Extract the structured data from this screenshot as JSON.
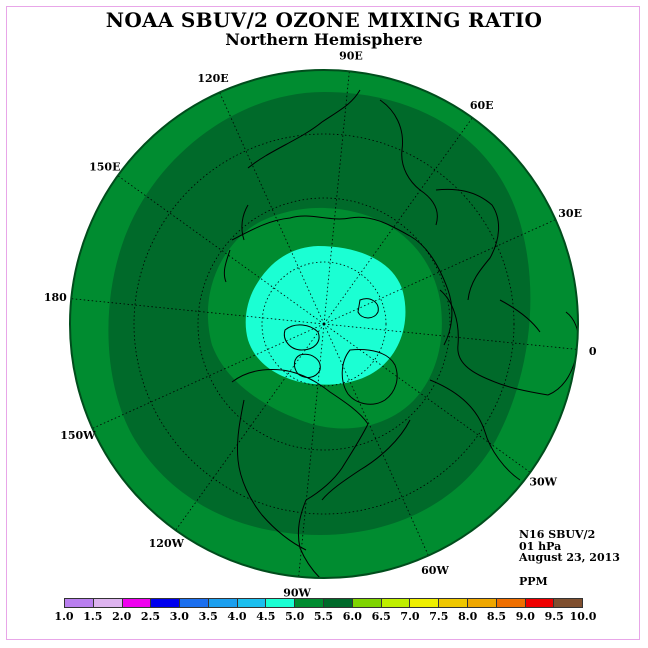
{
  "title": "NOAA SBUV/2 OZONE MIXING RATIO",
  "subtitle": "Northern Hemisphere",
  "info": {
    "satellite": "N16 SBUV/2",
    "level": "01 hPa",
    "date": "August 23, 2013",
    "units": "PPM"
  },
  "longitude_labels": [
    {
      "text": "90E",
      "lon": 90
    },
    {
      "text": "60E",
      "lon": 60
    },
    {
      "text": "30E",
      "lon": 30
    },
    {
      "text": "0",
      "lon": 0
    },
    {
      "text": "30W",
      "lon": -30
    },
    {
      "text": "60W",
      "lon": -60
    },
    {
      "text": "90W",
      "lon": -90
    },
    {
      "text": "120W",
      "lon": -120
    },
    {
      "text": "150W",
      "lon": -150
    },
    {
      "text": "180",
      "lon": 180
    },
    {
      "text": "150E",
      "lon": 150
    },
    {
      "text": "120E",
      "lon": 120
    }
  ],
  "colorbar": {
    "ticks": [
      "1.0",
      "1.5",
      "2.0",
      "2.5",
      "3.0",
      "3.5",
      "4.0",
      "4.5",
      "5.0",
      "5.5",
      "6.0",
      "6.5",
      "7.0",
      "7.5",
      "8.0",
      "8.5",
      "9.0",
      "9.5",
      "10.0"
    ],
    "colors": [
      "#b97fef",
      "#ddb3ef",
      "#ef00ef",
      "#0000ef",
      "#1b6fef",
      "#1b9fef",
      "#1bbfef",
      "#1bffd3",
      "#008c30",
      "#006a2a",
      "#7fd400",
      "#bfef00",
      "#efef00",
      "#efc700",
      "#efa700",
      "#ef6f00",
      "#ef0000",
      "#7f4f2f"
    ]
  },
  "map_colors": {
    "outer_band": "#008c30",
    "middle_band": "#006a2a",
    "inner_band": "#008c30",
    "polar_cap": "#1bffd3"
  }
}
